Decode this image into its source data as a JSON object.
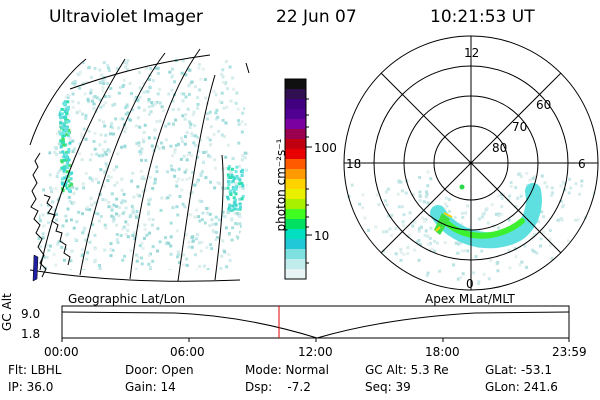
{
  "header": {
    "title": "Ultraviolet Imager",
    "date": "22 Jun 07",
    "time": "10:21:53 UT"
  },
  "colorbar": {
    "label": "photon cm⁻²s⁻¹",
    "ticks": [
      "100",
      "10"
    ],
    "colors": [
      "#101010",
      "#301050",
      "#400080",
      "#500090",
      "#7a00a0",
      "#9a0050",
      "#c00010",
      "#e80000",
      "#ff5a00",
      "#ff9a00",
      "#ffd200",
      "#e8f000",
      "#a8f000",
      "#40ff20",
      "#00e060",
      "#00e0c0",
      "#20c8d8",
      "#7fe0e0",
      "#c0ecec",
      "#e8f4f4"
    ]
  },
  "geo_panel": {
    "caption": "Geographic Lat/Lon"
  },
  "polar_panel": {
    "caption": "Apex MLat/MLT",
    "mlt_labels": [
      "12",
      "18",
      "6",
      "0"
    ],
    "mlat_labels": [
      "60",
      "70",
      "80"
    ]
  },
  "altitude_plot": {
    "ylabel": "GC Alt",
    "yticks": [
      "9.0",
      "1.8"
    ],
    "xticks": [
      "00:00",
      "06:00",
      "12:00",
      "18:00",
      "23:59"
    ],
    "marker_color": "#e00000"
  },
  "info": {
    "filter": "Flt: LBHL",
    "ip": "IP: 36.0",
    "door": "Door: Open",
    "gain": "Gain: 14",
    "mode": "Mode: Normal",
    "dsp": "Dsp:    -7.2",
    "gc_alt": "GC Alt: 5.3 Re",
    "seq": "Seq: 39",
    "glat": "GLat: -53.1",
    "glon": "GLon: 241.6"
  }
}
